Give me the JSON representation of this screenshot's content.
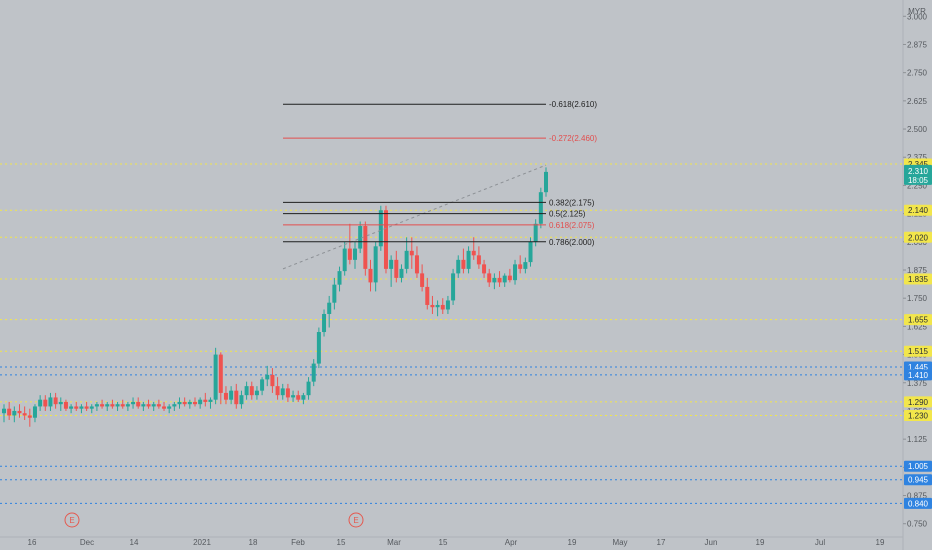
{
  "currency_label": "MYR",
  "colors": {
    "background": "#bfc3c8",
    "up": "#26a69a",
    "down": "#ef5350",
    "support_line": "#f2e64b",
    "blue_line": "#2f83e0",
    "fib_line": "#1f1f1f",
    "fib_red": "#e24e4e",
    "trend_line": "#8d9196",
    "price_tag": "#26a69a"
  },
  "chart_data": {
    "type": "candlestick",
    "title": "",
    "xlabel": "",
    "ylabel": "",
    "ylim": [
      0.7,
      3.05
    ],
    "y_ticks": [
      "3.000",
      "2.875",
      "2.750",
      "2.625",
      "2.500",
      "2.375",
      "2.250",
      "2.125",
      "2.000",
      "1.875",
      "1.750",
      "1.625",
      "1.500",
      "1.375",
      "1.250",
      "1.125",
      "1.000",
      "0.875",
      "0.750"
    ],
    "x_tick_labels": [
      "16",
      "Dec",
      "14",
      "2021",
      "18",
      "Feb",
      "15",
      "Mar",
      "15",
      "Apr",
      "19",
      "May",
      "17",
      "Jun",
      "19",
      "Jul",
      "19"
    ],
    "event_markers": [
      "E",
      "E"
    ],
    "support_levels": [
      "2.345",
      "2.140",
      "2.020",
      "1.835",
      "1.655",
      "1.515",
      "1.290",
      "1.230"
    ],
    "blue_levels": [
      "1.445",
      "1.410",
      "1.005",
      "0.945",
      "0.840"
    ],
    "current_price": "2.310",
    "countdown": "18:05",
    "fib_levels": [
      {
        "label": "-0.618(2.610)",
        "value": 2.61,
        "color": "#1f1f1f"
      },
      {
        "label": "-0.272(2.460)",
        "value": 2.46,
        "color": "#e24e4e"
      },
      {
        "label": "0.382(2.175)",
        "value": 2.175,
        "color": "#1f1f1f"
      },
      {
        "label": "0.5(2.125)",
        "value": 2.125,
        "color": "#1f1f1f"
      },
      {
        "label": "0.618(2.075)",
        "value": 2.075,
        "color": "#e24e4e"
      },
      {
        "label": "0.786(2.000)",
        "value": 2.0,
        "color": "#1f1f1f"
      }
    ],
    "candles": [
      [
        1.24,
        1.28,
        1.2,
        1.26
      ],
      [
        1.26,
        1.29,
        1.21,
        1.23
      ],
      [
        1.23,
        1.27,
        1.2,
        1.25
      ],
      [
        1.25,
        1.28,
        1.22,
        1.24
      ],
      [
        1.24,
        1.27,
        1.21,
        1.23
      ],
      [
        1.23,
        1.26,
        1.18,
        1.22
      ],
      [
        1.22,
        1.28,
        1.2,
        1.27
      ],
      [
        1.27,
        1.32,
        1.25,
        1.3
      ],
      [
        1.3,
        1.32,
        1.25,
        1.27
      ],
      [
        1.27,
        1.33,
        1.25,
        1.31
      ],
      [
        1.31,
        1.33,
        1.26,
        1.28
      ],
      [
        1.28,
        1.31,
        1.25,
        1.29
      ],
      [
        1.29,
        1.3,
        1.25,
        1.26
      ],
      [
        1.26,
        1.28,
        1.24,
        1.27
      ],
      [
        1.27,
        1.29,
        1.25,
        1.26
      ],
      [
        1.26,
        1.28,
        1.24,
        1.27
      ],
      [
        1.27,
        1.29,
        1.25,
        1.26
      ],
      [
        1.26,
        1.28,
        1.24,
        1.27
      ],
      [
        1.27,
        1.29,
        1.25,
        1.28
      ],
      [
        1.28,
        1.3,
        1.26,
        1.27
      ],
      [
        1.27,
        1.29,
        1.25,
        1.28
      ],
      [
        1.28,
        1.3,
        1.26,
        1.27
      ],
      [
        1.27,
        1.29,
        1.25,
        1.28
      ],
      [
        1.28,
        1.3,
        1.26,
        1.27
      ],
      [
        1.27,
        1.29,
        1.25,
        1.28
      ],
      [
        1.28,
        1.31,
        1.26,
        1.29
      ],
      [
        1.29,
        1.31,
        1.26,
        1.27
      ],
      [
        1.27,
        1.29,
        1.25,
        1.28
      ],
      [
        1.28,
        1.3,
        1.26,
        1.27
      ],
      [
        1.27,
        1.29,
        1.25,
        1.28
      ],
      [
        1.28,
        1.3,
        1.26,
        1.27
      ],
      [
        1.27,
        1.29,
        1.25,
        1.26
      ],
      [
        1.26,
        1.28,
        1.24,
        1.27
      ],
      [
        1.27,
        1.29,
        1.25,
        1.28
      ],
      [
        1.28,
        1.31,
        1.26,
        1.29
      ],
      [
        1.29,
        1.31,
        1.27,
        1.28
      ],
      [
        1.28,
        1.3,
        1.26,
        1.29
      ],
      [
        1.29,
        1.31,
        1.27,
        1.28
      ],
      [
        1.28,
        1.31,
        1.26,
        1.3
      ],
      [
        1.3,
        1.33,
        1.27,
        1.29
      ],
      [
        1.29,
        1.31,
        1.26,
        1.3
      ],
      [
        1.3,
        1.53,
        1.28,
        1.5
      ],
      [
        1.5,
        1.51,
        1.28,
        1.33
      ],
      [
        1.33,
        1.36,
        1.28,
        1.3
      ],
      [
        1.3,
        1.36,
        1.28,
        1.34
      ],
      [
        1.34,
        1.37,
        1.26,
        1.28
      ],
      [
        1.28,
        1.34,
        1.26,
        1.32
      ],
      [
        1.32,
        1.38,
        1.3,
        1.36
      ],
      [
        1.36,
        1.38,
        1.3,
        1.32
      ],
      [
        1.32,
        1.36,
        1.3,
        1.34
      ],
      [
        1.34,
        1.4,
        1.32,
        1.39
      ],
      [
        1.39,
        1.45,
        1.36,
        1.41
      ],
      [
        1.41,
        1.44,
        1.33,
        1.36
      ],
      [
        1.36,
        1.4,
        1.3,
        1.32
      ],
      [
        1.32,
        1.37,
        1.3,
        1.35
      ],
      [
        1.35,
        1.37,
        1.29,
        1.31
      ],
      [
        1.31,
        1.34,
        1.29,
        1.32
      ],
      [
        1.32,
        1.34,
        1.29,
        1.3
      ],
      [
        1.3,
        1.33,
        1.28,
        1.32
      ],
      [
        1.32,
        1.4,
        1.3,
        1.38
      ],
      [
        1.38,
        1.48,
        1.36,
        1.46
      ],
      [
        1.46,
        1.62,
        1.44,
        1.6
      ],
      [
        1.6,
        1.7,
        1.58,
        1.68
      ],
      [
        1.68,
        1.76,
        1.62,
        1.73
      ],
      [
        1.73,
        1.84,
        1.7,
        1.81
      ],
      [
        1.81,
        1.89,
        1.78,
        1.87
      ],
      [
        1.87,
        2.0,
        1.85,
        1.97
      ],
      [
        1.97,
        2.08,
        1.9,
        1.92
      ],
      [
        1.92,
        2.0,
        1.88,
        1.97
      ],
      [
        1.97,
        2.09,
        1.95,
        2.07
      ],
      [
        2.07,
        2.09,
        1.85,
        1.88
      ],
      [
        1.88,
        1.92,
        1.78,
        1.82
      ],
      [
        1.82,
        2.0,
        1.78,
        1.98
      ],
      [
        1.98,
        2.16,
        1.96,
        2.14
      ],
      [
        2.14,
        2.16,
        1.86,
        1.88
      ],
      [
        1.88,
        1.94,
        1.8,
        1.92
      ],
      [
        1.92,
        1.96,
        1.82,
        1.84
      ],
      [
        1.84,
        1.9,
        1.82,
        1.88
      ],
      [
        1.88,
        2.02,
        1.86,
        1.96
      ],
      [
        1.96,
        2.02,
        1.88,
        1.94
      ],
      [
        1.94,
        1.98,
        1.84,
        1.86
      ],
      [
        1.86,
        1.9,
        1.78,
        1.8
      ],
      [
        1.8,
        1.84,
        1.7,
        1.72
      ],
      [
        1.72,
        1.76,
        1.68,
        1.71
      ],
      [
        1.71,
        1.74,
        1.67,
        1.72
      ],
      [
        1.72,
        1.75,
        1.68,
        1.7
      ],
      [
        1.7,
        1.76,
        1.68,
        1.74
      ],
      [
        1.74,
        1.88,
        1.72,
        1.86
      ],
      [
        1.86,
        1.94,
        1.84,
        1.92
      ],
      [
        1.92,
        1.97,
        1.86,
        1.88
      ],
      [
        1.88,
        1.98,
        1.86,
        1.96
      ],
      [
        1.96,
        2.02,
        1.92,
        1.94
      ],
      [
        1.94,
        1.98,
        1.88,
        1.9
      ],
      [
        1.9,
        1.92,
        1.84,
        1.86
      ],
      [
        1.86,
        1.88,
        1.8,
        1.82
      ],
      [
        1.82,
        1.86,
        1.79,
        1.84
      ],
      [
        1.84,
        1.87,
        1.8,
        1.82
      ],
      [
        1.82,
        1.86,
        1.8,
        1.85
      ],
      [
        1.85,
        1.88,
        1.82,
        1.83
      ],
      [
        1.83,
        1.92,
        1.81,
        1.9
      ],
      [
        1.9,
        1.94,
        1.86,
        1.88
      ],
      [
        1.88,
        1.93,
        1.86,
        1.91
      ],
      [
        1.91,
        2.02,
        1.89,
        2.0
      ],
      [
        2.0,
        2.1,
        1.98,
        2.08
      ],
      [
        2.08,
        2.24,
        2.06,
        2.22
      ],
      [
        2.22,
        2.33,
        2.2,
        2.31
      ]
    ]
  }
}
